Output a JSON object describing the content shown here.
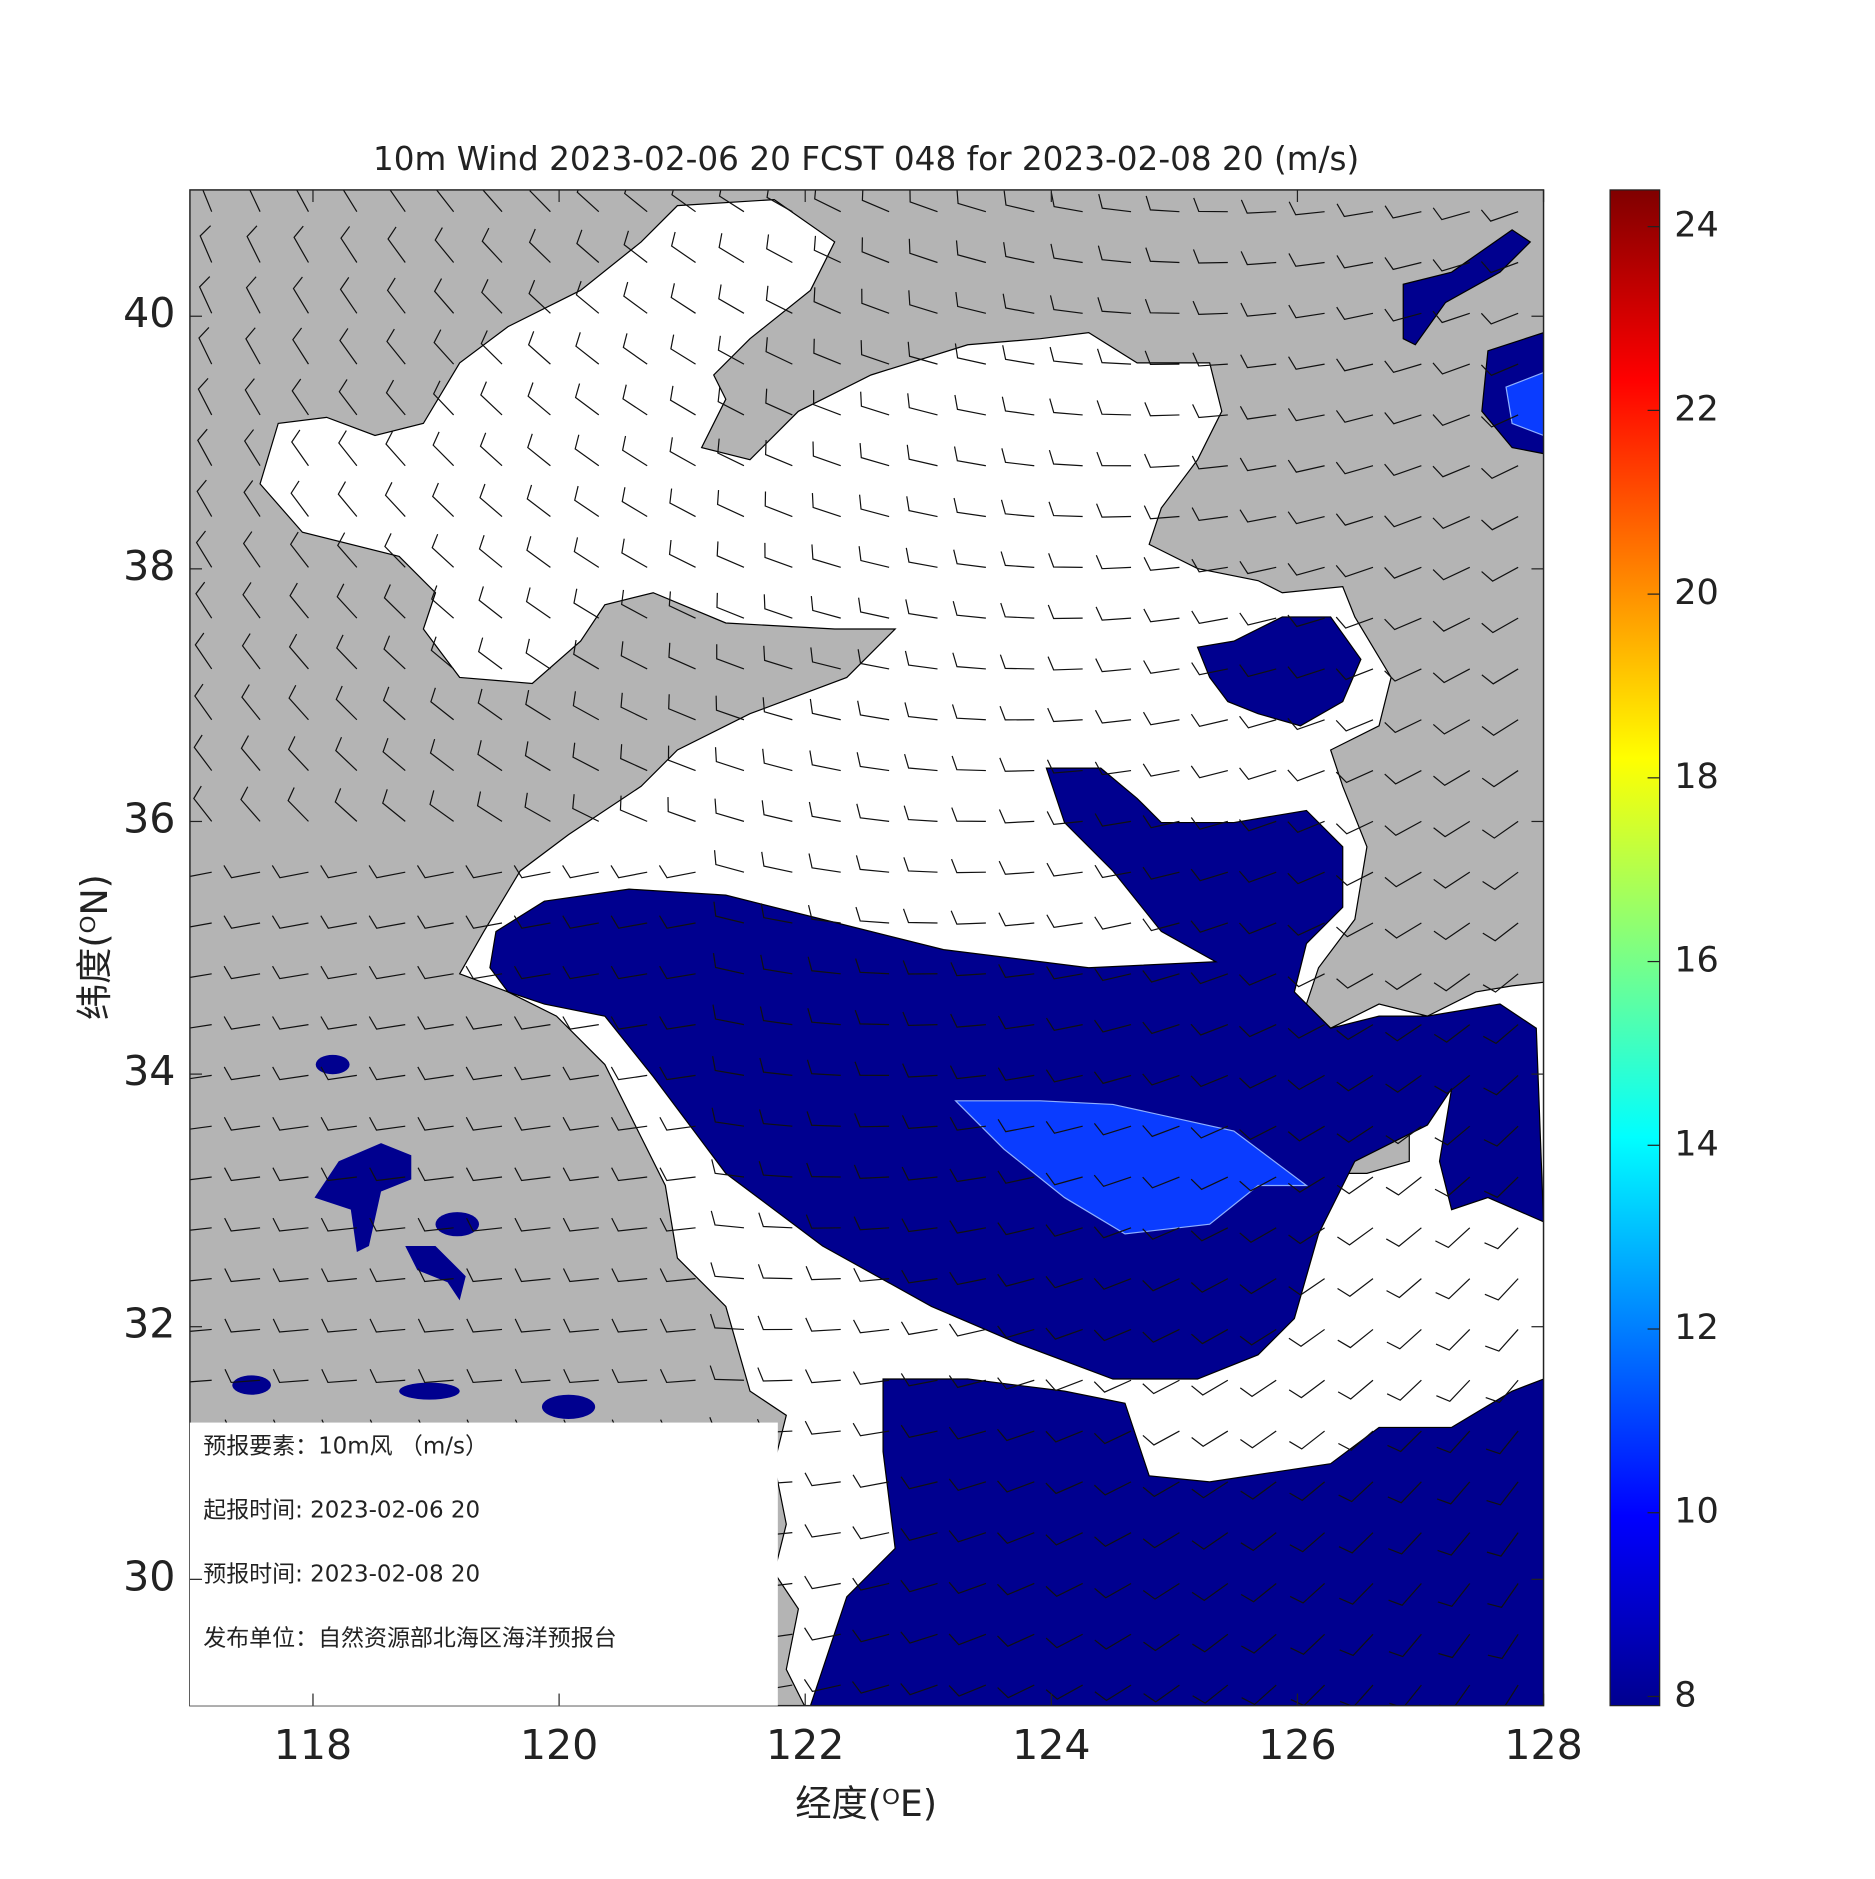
{
  "chart_data": {
    "type": "map",
    "title": "10m Wind 2023-02-06 20 FCST 048 for 2023-02-08 20 (m/s)",
    "xlabel": "经度(ᴼE)",
    "ylabel": "纬度(ᴼN)",
    "xlim": [
      117,
      128
    ],
    "ylim": [
      29,
      41
    ],
    "xticks": [
      118,
      120,
      122,
      124,
      126,
      128
    ],
    "yticks": [
      30,
      32,
      34,
      36,
      38,
      40
    ],
    "clim": [
      7.9,
      24.4
    ],
    "cticks": [
      8,
      10,
      12,
      14,
      16,
      18,
      20,
      22,
      24
    ],
    "colormap": [
      "#00008f",
      "#0000ff",
      "#0080ff",
      "#00ffff",
      "#80ff80",
      "#ffff00",
      "#ff8000",
      "#ff0000",
      "#800000"
    ],
    "info": [
      "预报要素：10m风 （m/s）",
      "起报时间: 2023-02-06 20",
      "预报时间: 2023-02-08 20",
      "发布单位：自然资源部北海区海洋预报台"
    ]
  }
}
